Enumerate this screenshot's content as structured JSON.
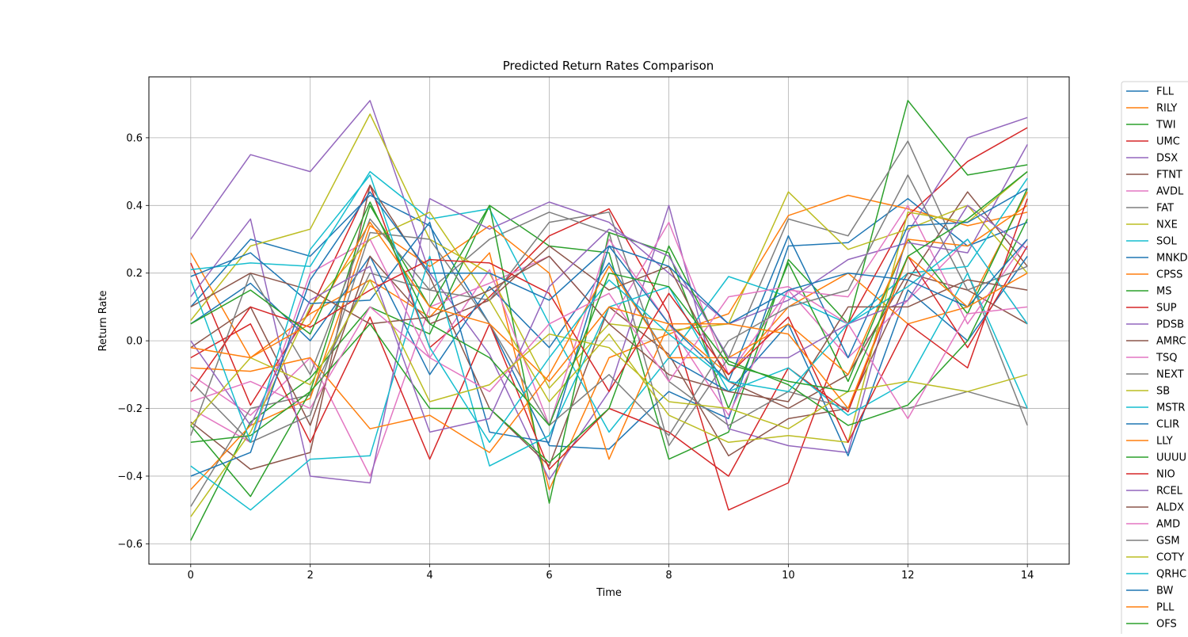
{
  "chart_data": {
    "type": "line",
    "title": "Predicted Return Rates Comparison",
    "xlabel": "Time",
    "ylabel": "Return Rate",
    "x": [
      0,
      1,
      2,
      3,
      4,
      5,
      6,
      7,
      8,
      9,
      10,
      11,
      12,
      13,
      14
    ],
    "xlim": [
      -0.7,
      14.7
    ],
    "ylim": [
      -0.66,
      0.78
    ],
    "xticks": [
      0,
      2,
      4,
      6,
      8,
      10,
      12,
      14
    ],
    "xtick_labels": [
      "0",
      "2",
      "4",
      "6",
      "8",
      "10",
      "12",
      "14"
    ],
    "yticks": [
      -0.6,
      -0.4,
      -0.2,
      0.0,
      0.2,
      0.4,
      0.6
    ],
    "ytick_labels": [
      "−0.6",
      "−0.4",
      "−0.2",
      "0.0",
      "0.2",
      "0.4",
      "0.6"
    ],
    "grid": true,
    "legend_position": "outside-right",
    "colors": [
      "#1f77b4",
      "#ff7f0e",
      "#2ca02c",
      "#d62728",
      "#9467bd",
      "#8c564b",
      "#e377c2",
      "#7f7f7f",
      "#bcbd22",
      "#17becf"
    ],
    "series": [
      {
        "name": "FLL",
        "values": [
          0.1,
          0.3,
          0.25,
          0.43,
          0.34,
          0.05,
          -0.31,
          -0.32,
          -0.15,
          -0.23,
          0.28,
          0.29,
          0.42,
          0.28,
          0.35
        ]
      },
      {
        "name": "RILY",
        "values": [
          0.26,
          -0.05,
          0.08,
          0.18,
          0.07,
          0.26,
          -0.44,
          -0.05,
          0.02,
          0.08,
          0.37,
          0.43,
          0.39,
          0.34,
          0.38
        ]
      },
      {
        "name": "TWI",
        "values": [
          -0.59,
          -0.24,
          -0.11,
          0.1,
          0.02,
          0.4,
          0.28,
          0.26,
          -0.35,
          -0.27,
          0.24,
          0.05,
          0.71,
          0.49,
          0.52
        ]
      },
      {
        "name": "UMC",
        "values": [
          0.23,
          -0.19,
          0.09,
          0.46,
          -0.02,
          0.13,
          0.31,
          0.39,
          0.08,
          -0.5,
          -0.42,
          0.05,
          0.37,
          0.53,
          0.63
        ]
      },
      {
        "name": "DSX",
        "values": [
          0.3,
          0.55,
          0.5,
          0.71,
          0.2,
          -0.04,
          -0.41,
          -0.15,
          0.4,
          -0.26,
          -0.31,
          -0.33,
          0.32,
          0.6,
          0.66
        ]
      },
      {
        "name": "FTNT",
        "values": [
          -0.24,
          -0.38,
          -0.33,
          0.46,
          0.19,
          -0.2,
          -0.37,
          0.1,
          -0.04,
          -0.34,
          -0.23,
          -0.2,
          0.18,
          0.44,
          0.22
        ]
      },
      {
        "name": "AVDL",
        "values": [
          -0.1,
          -0.22,
          -0.05,
          -0.4,
          0.1,
          0.17,
          0.25,
          0.05,
          0.35,
          -0.1,
          0.15,
          -0.05,
          0.12,
          0.3,
          0.05
        ]
      },
      {
        "name": "FAT",
        "values": [
          -0.49,
          -0.2,
          -0.16,
          0.2,
          0.15,
          0.3,
          0.38,
          0.32,
          -0.31,
          -0.05,
          0.36,
          0.31,
          0.59,
          0.2,
          -0.25
        ]
      },
      {
        "name": "NXE",
        "values": [
          0.06,
          0.28,
          0.33,
          0.67,
          0.3,
          0.2,
          -0.14,
          0.05,
          0.03,
          0.05,
          0.44,
          0.27,
          0.33,
          0.4,
          0.2
        ]
      },
      {
        "name": "SOL",
        "values": [
          0.21,
          0.23,
          0.22,
          0.5,
          0.36,
          0.39,
          0.05,
          -0.27,
          -0.05,
          0.19,
          0.13,
          0.05,
          0.2,
          0.22,
          0.48
        ]
      },
      {
        "name": "MNKD",
        "values": [
          0.05,
          0.17,
          0.0,
          0.25,
          -0.1,
          0.16,
          -0.02,
          0.23,
          -0.05,
          -0.15,
          0.05,
          -0.34,
          0.15,
          0.0,
          0.25
        ]
      },
      {
        "name": "CPSS",
        "values": [
          -0.44,
          -0.25,
          -0.17,
          0.34,
          0.22,
          0.34,
          0.2,
          -0.35,
          0.05,
          -0.1,
          0.1,
          0.2,
          0.05,
          0.1,
          0.44
        ]
      },
      {
        "name": "MS",
        "values": [
          -0.25,
          -0.46,
          -0.15,
          0.4,
          0.1,
          0.4,
          -0.48,
          0.32,
          0.26,
          -0.2,
          0.23,
          -0.12,
          0.3,
          0.08,
          0.45
        ]
      },
      {
        "name": "SUP",
        "values": [
          -0.05,
          0.05,
          -0.3,
          0.07,
          -0.35,
          0.05,
          -0.38,
          -0.2,
          -0.27,
          -0.4,
          -0.08,
          -0.21,
          0.25,
          -0.02,
          0.28
        ]
      },
      {
        "name": "PDSB",
        "values": [
          0.13,
          0.36,
          -0.4,
          -0.42,
          0.42,
          0.33,
          0.41,
          0.35,
          0.2,
          0.05,
          0.12,
          0.24,
          0.29,
          0.26,
          0.58
        ]
      },
      {
        "name": "AMRC",
        "values": [
          -0.02,
          0.1,
          -0.25,
          0.25,
          0.05,
          0.12,
          0.28,
          0.15,
          0.22,
          -0.12,
          -0.2,
          -0.1,
          0.2,
          0.15,
          0.05
        ]
      },
      {
        "name": "TSQ",
        "values": [
          -0.2,
          -0.3,
          0.2,
          0.3,
          -0.05,
          0.21,
          -0.25,
          0.3,
          0.05,
          -0.22,
          0.15,
          0.13,
          0.4,
          0.05,
          0.3
        ]
      },
      {
        "name": "NEXT",
        "values": [
          -0.28,
          0.2,
          -0.1,
          0.36,
          0.15,
          0.12,
          0.35,
          0.38,
          -0.12,
          -0.25,
          -0.15,
          -0.2,
          -0.2,
          -0.15,
          -0.2
        ]
      },
      {
        "name": "SB",
        "values": [
          -0.52,
          -0.27,
          0.1,
          0.3,
          0.38,
          0.12,
          -0.18,
          0.02,
          -0.22,
          -0.3,
          -0.28,
          -0.3,
          0.38,
          0.35,
          0.5
        ]
      },
      {
        "name": "MSTR",
        "values": [
          -0.37,
          -0.5,
          -0.35,
          -0.34,
          0.25,
          -0.37,
          -0.28,
          0.1,
          0.16,
          -0.15,
          -0.08,
          -0.22,
          -0.12,
          0.2,
          -0.2
        ]
      },
      {
        "name": "CLIR",
        "values": [
          0.19,
          0.26,
          0.11,
          0.12,
          0.35,
          -0.27,
          -0.3,
          0.28,
          0.05,
          -0.12,
          0.31,
          -0.05,
          0.34,
          0.35,
          0.45
        ]
      },
      {
        "name": "LLY",
        "values": [
          -0.08,
          -0.09,
          -0.05,
          -0.26,
          -0.22,
          -0.33,
          -0.1,
          0.22,
          -0.05,
          -0.05,
          0.05,
          -0.1,
          0.3,
          0.28,
          0.4
        ]
      },
      {
        "name": "UUUU",
        "values": [
          -0.3,
          -0.28,
          -0.15,
          0.05,
          -0.2,
          -0.2,
          -0.36,
          -0.2,
          0.28,
          -0.06,
          -0.13,
          -0.25,
          -0.19,
          0.0,
          0.36
        ]
      },
      {
        "name": "NIO",
        "values": [
          -0.15,
          0.1,
          0.04,
          0.15,
          0.24,
          0.23,
          0.14,
          -0.15,
          0.14,
          -0.1,
          0.07,
          -0.3,
          0.05,
          -0.08,
          0.42
        ]
      },
      {
        "name": "RCEL",
        "values": [
          0.0,
          -0.25,
          0.12,
          0.22,
          -0.27,
          -0.23,
          0.16,
          0.33,
          0.25,
          -0.05,
          -0.05,
          0.05,
          0.12,
          0.4,
          0.27
        ]
      },
      {
        "name": "ALDX",
        "values": [
          0.1,
          0.2,
          0.15,
          0.05,
          0.07,
          0.15,
          0.25,
          0.05,
          -0.1,
          -0.15,
          -0.18,
          0.1,
          0.1,
          0.18,
          0.15
        ]
      },
      {
        "name": "AMD",
        "values": [
          -0.18,
          -0.12,
          -0.2,
          0.1,
          -0.05,
          -0.15,
          0.05,
          0.14,
          -0.12,
          0.13,
          0.16,
          0.05,
          -0.23,
          0.08,
          0.1
        ]
      },
      {
        "name": "GSM",
        "values": [
          -0.12,
          -0.3,
          -0.22,
          0.32,
          0.3,
          0.05,
          -0.25,
          -0.1,
          -0.28,
          0.0,
          0.1,
          0.15,
          0.49,
          0.15,
          0.22
        ]
      },
      {
        "name": "COTY",
        "values": [
          -0.25,
          -0.05,
          -0.13,
          0.18,
          -0.18,
          -0.13,
          0.02,
          -0.02,
          -0.18,
          -0.2,
          -0.26,
          -0.15,
          -0.12,
          -0.15,
          -0.1
        ]
      },
      {
        "name": "QRHC",
        "values": [
          0.18,
          -0.3,
          0.27,
          0.49,
          -0.02,
          -0.3,
          -0.05,
          0.18,
          0.02,
          -0.12,
          -0.15,
          0.05,
          0.16,
          0.3,
          0.05
        ]
      },
      {
        "name": "BW",
        "values": [
          -0.4,
          -0.33,
          0.18,
          0.44,
          0.2,
          0.2,
          0.12,
          0.28,
          0.22,
          0.05,
          0.15,
          0.2,
          0.18,
          0.1,
          0.3
        ]
      },
      {
        "name": "PLL",
        "values": [
          -0.02,
          -0.05,
          0.05,
          0.35,
          0.1,
          0.05,
          -0.12,
          0.1,
          0.05,
          0.05,
          0.02,
          -0.2,
          0.25,
          0.1,
          0.2
        ]
      },
      {
        "name": "OFS",
        "values": [
          0.05,
          0.15,
          0.02,
          0.41,
          0.05,
          -0.05,
          -0.25,
          0.2,
          0.16,
          -0.07,
          -0.12,
          -0.15,
          0.25,
          0.36,
          0.5
        ]
      }
    ]
  }
}
